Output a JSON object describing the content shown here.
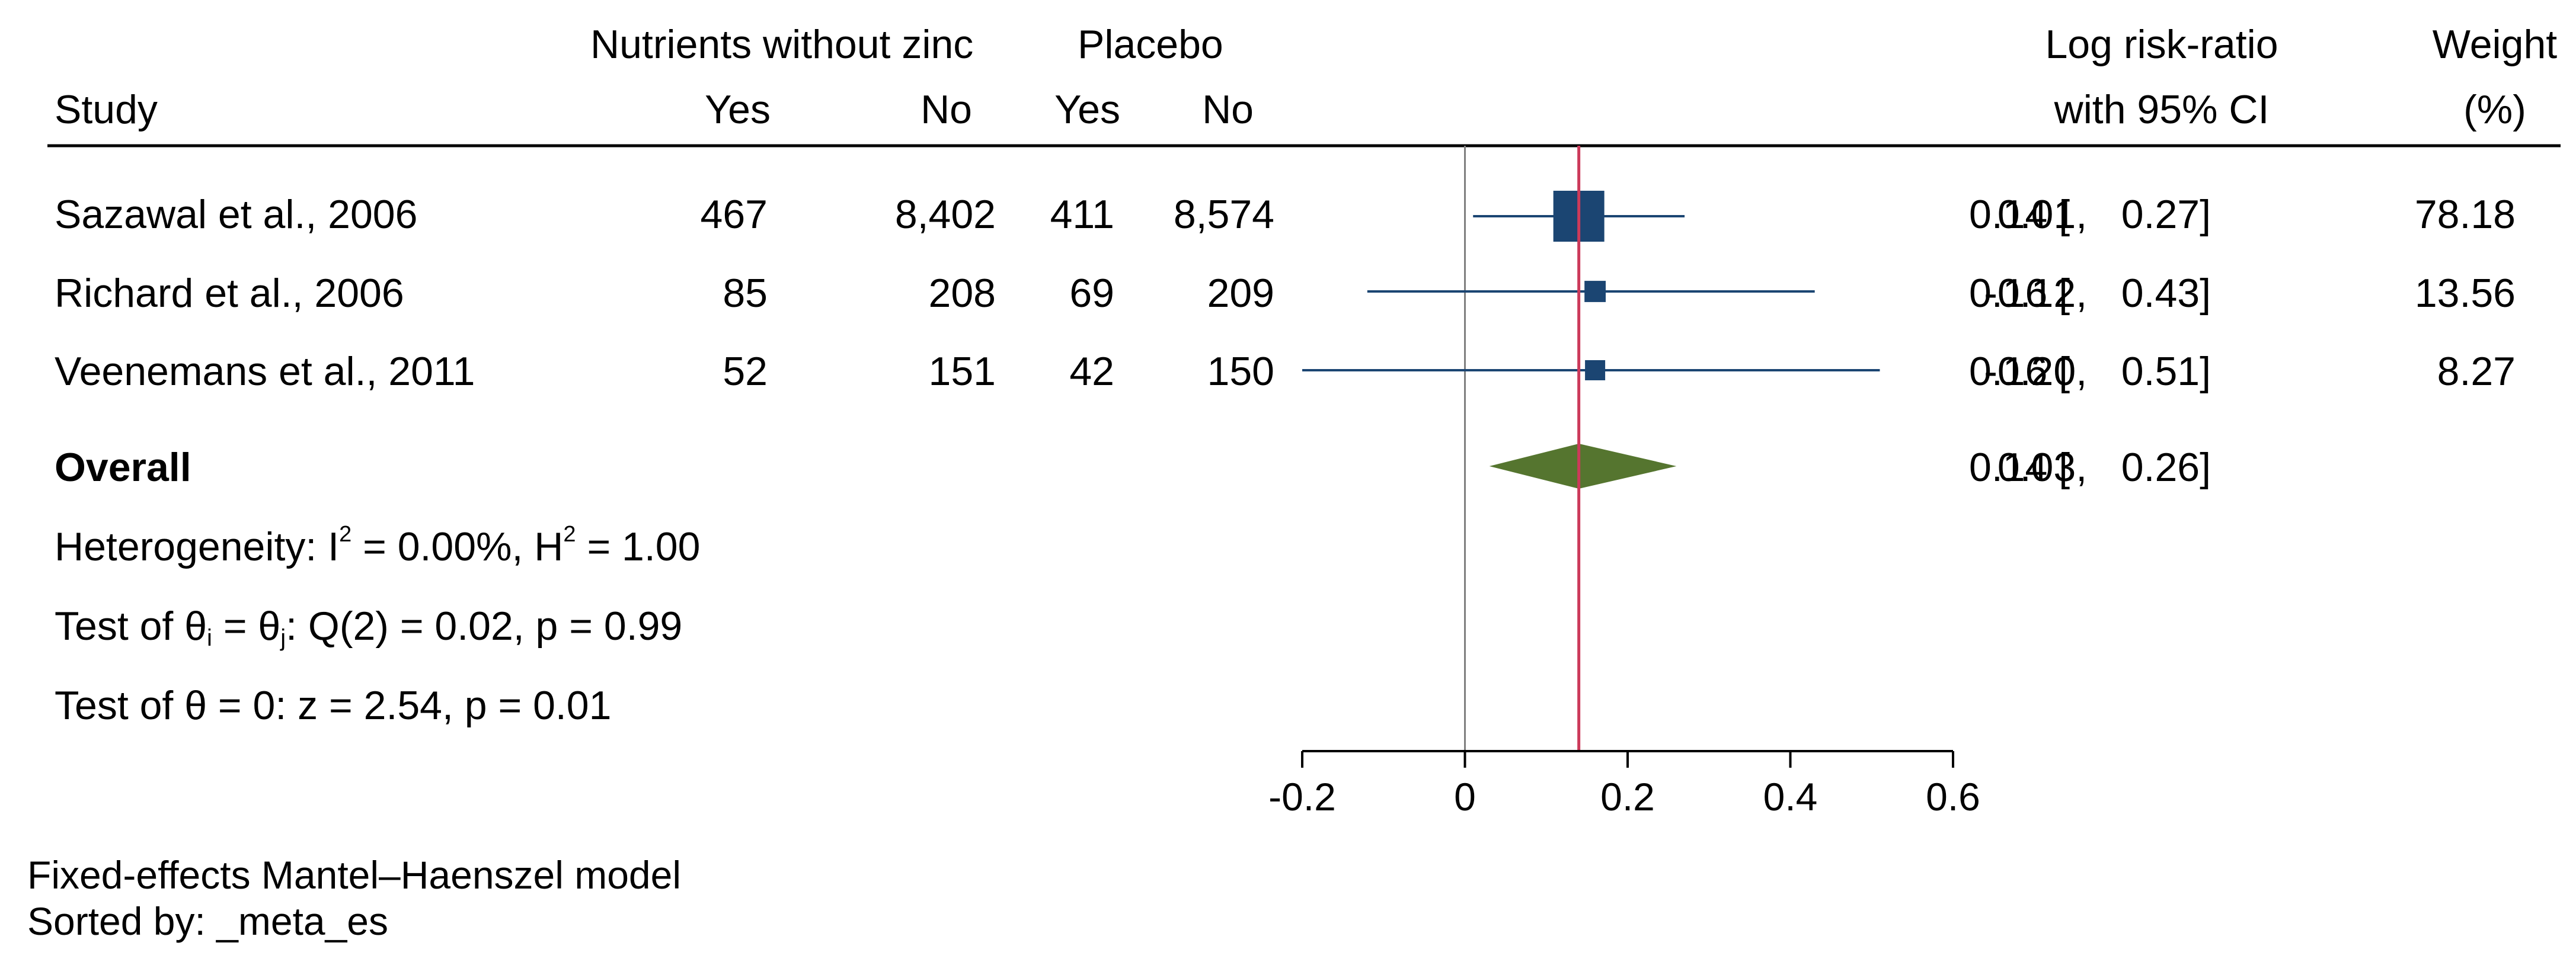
{
  "headers": {
    "study": "Study",
    "group1": "Nutrients without zinc",
    "group2": "Placebo",
    "yes": "Yes",
    "no": "No",
    "effect_line1": "Log risk-ratio",
    "effect_line2": "with 95% CI",
    "weight_line1": "Weight",
    "weight_line2": "(%)"
  },
  "studies": [
    {
      "name": "Sazawal et al., 2006",
      "t_yes": "467",
      "t_no": "8,402",
      "c_yes": "411",
      "c_no": "8,574",
      "es": "0.14",
      "lo": "0.01",
      "hi": "0.27",
      "weight": "78.18"
    },
    {
      "name": "Richard et al., 2006",
      "t_yes": "85",
      "t_no": "208",
      "c_yes": "69",
      "c_no": "209",
      "es": "0.16",
      "lo": "-0.12",
      "hi": "0.43",
      "weight": "13.56"
    },
    {
      "name": "Veenemans et al., 2011",
      "t_yes": "52",
      "t_no": "151",
      "c_yes": "42",
      "c_no": "150",
      "es": "0.16",
      "lo": "-0.20",
      "hi": "0.51",
      "weight": "8.27"
    }
  ],
  "overall": {
    "label": "Overall",
    "es": "0.14",
    "lo": "0.03",
    "hi": "0.26"
  },
  "stats": {
    "heterogeneity": {
      "pre": "Heterogeneity: I",
      "sup1": "2",
      "mid": " = 0.00%, H",
      "sup2": "2",
      "post": " = 1.00"
    },
    "test_theta_ij": {
      "pre": "Test of θ",
      "sub1": "i",
      "mid": " = θ",
      "sub2": "j",
      "post": ": Q(2) = 0.02, p = 0.99"
    },
    "test_theta_zero": "Test of θ = 0: z = 2.54, p = 0.01"
  },
  "footer": {
    "model": "Fixed-effects Mantel–Haenszel model",
    "sorted": "Sorted by: _meta_es"
  },
  "colors": {
    "square": "#1b4572",
    "diamond": "#55752f",
    "overall_line": "#cc3a5a",
    "null_line": "#808080"
  },
  "chart_data": {
    "type": "forest",
    "xlabel": "",
    "xlim": [
      -0.2,
      0.6
    ],
    "ticks": [
      -0.2,
      0,
      0.2,
      0.4,
      0.6
    ],
    "tick_labels": [
      "-0.2",
      "0",
      "0.2",
      "0.4",
      "0.6"
    ],
    "null_value": 0,
    "overall_value": 0.14,
    "series": [
      {
        "name": "Sazawal et al., 2006",
        "es": 0.14,
        "lo": 0.01,
        "hi": 0.27,
        "weight": 78.18
      },
      {
        "name": "Richard et al., 2006",
        "es": 0.16,
        "lo": -0.12,
        "hi": 0.43,
        "weight": 13.56
      },
      {
        "name": "Veenemans et al., 2011",
        "es": 0.16,
        "lo": -0.2,
        "hi": 0.51,
        "weight": 8.27
      }
    ],
    "overall": {
      "es": 0.14,
      "lo": 0.03,
      "hi": 0.26
    }
  }
}
